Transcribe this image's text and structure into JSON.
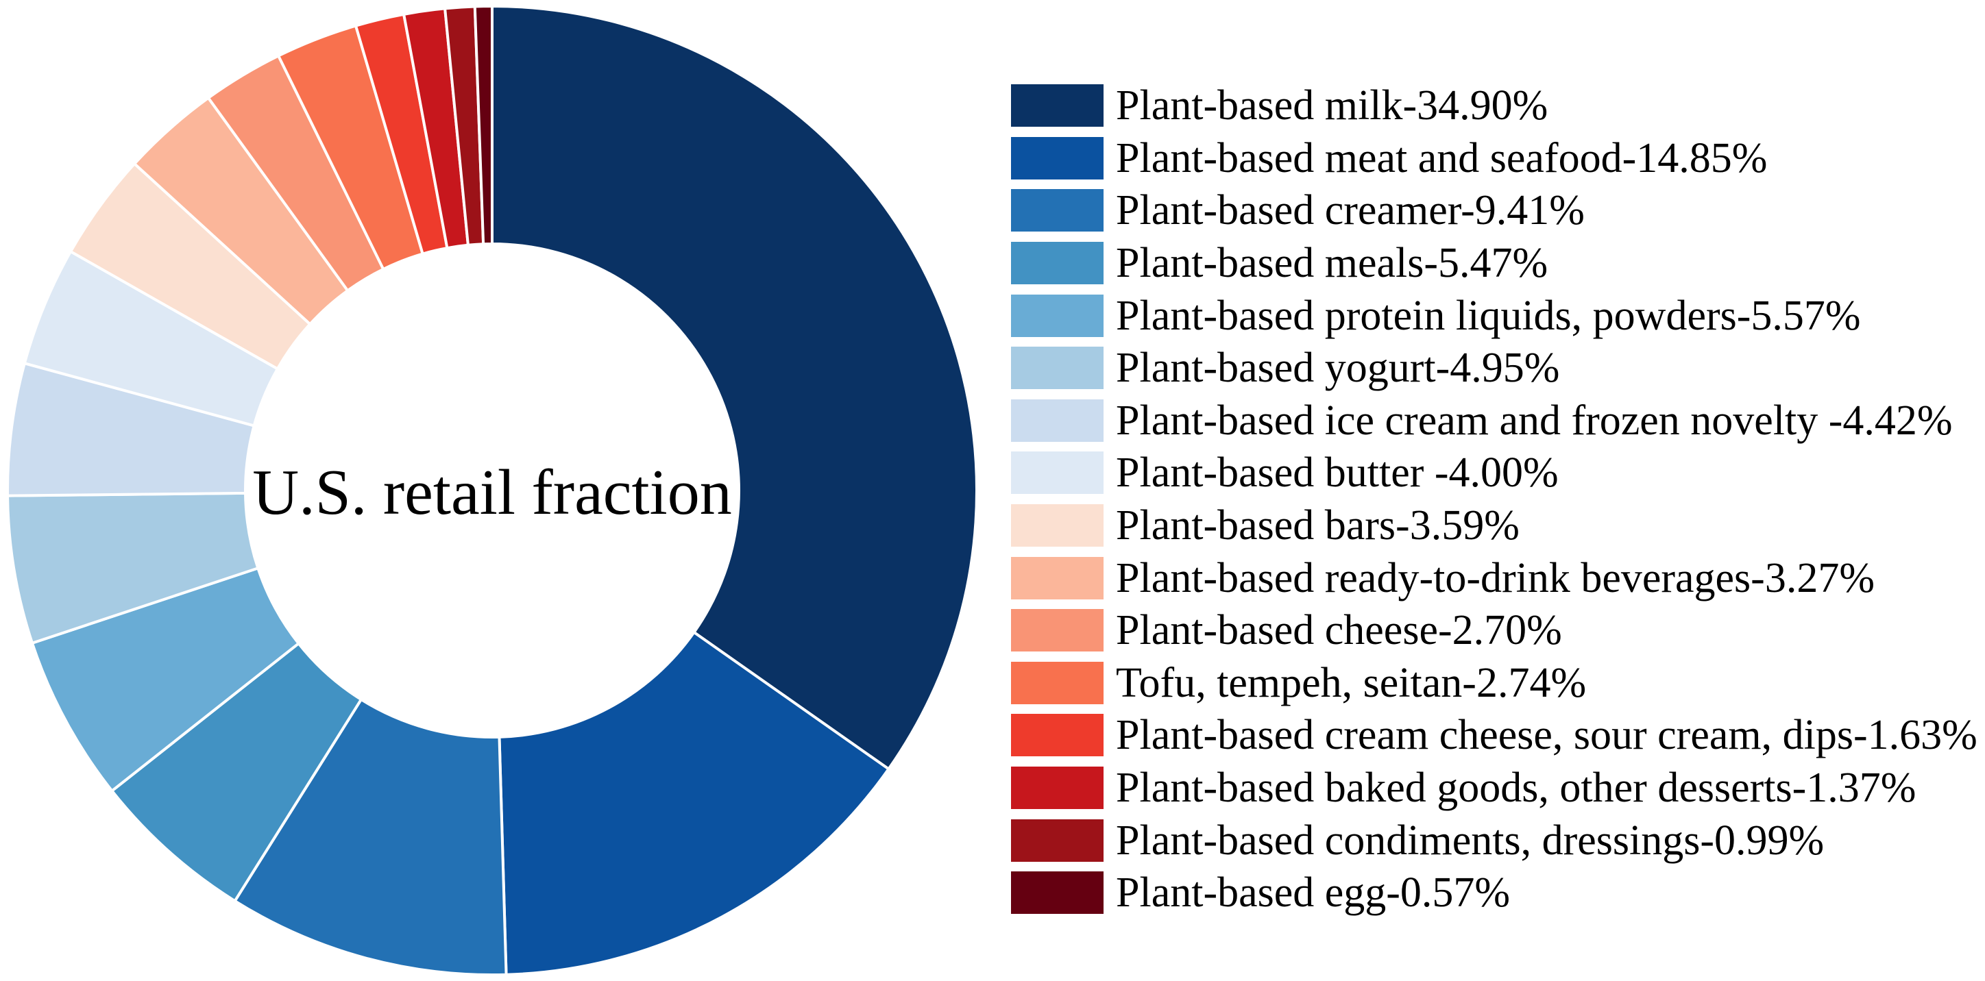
{
  "chart_data": {
    "type": "pie",
    "subtype": "donut",
    "center_label": "U.S. retail fraction",
    "legend_position": "right",
    "start_angle_deg": 90,
    "direction": "clockwise",
    "gap_color": "#ffffff",
    "items": [
      {
        "label": "Plant-based milk",
        "value": 34.9,
        "display": "Plant-based milk-34.90%",
        "color": "#0a3264"
      },
      {
        "label": "Plant-based meat and seafood",
        "value": 14.85,
        "display": "Plant-based meat and seafood-14.85%",
        "color": "#0b52a0"
      },
      {
        "label": "Plant-based creamer",
        "value": 9.41,
        "display": "Plant-based creamer-9.41%",
        "color": "#2371b4"
      },
      {
        "label": "Plant-based meals",
        "value": 5.47,
        "display": "Plant-based meals-5.47%",
        "color": "#4292c3"
      },
      {
        "label": "Plant-based protein liquids, powders",
        "value": 5.57,
        "display": "Plant-based protein liquids, powders-5.57%",
        "color": "#69acd5"
      },
      {
        "label": "Plant-based yogurt",
        "value": 4.95,
        "display": "Plant-based yogurt-4.95%",
        "color": "#a6cbe3"
      },
      {
        "label": "Plant-based ice cream and frozen novelty",
        "value": 4.42,
        "display": "Plant-based ice cream and frozen novelty -4.42%",
        "color": "#cbdcef"
      },
      {
        "label": "Plant-based butter",
        "value": 4.0,
        "display": "Plant-based butter -4.00%",
        "color": "#dee9f5"
      },
      {
        "label": "Plant-based bars",
        "value": 3.59,
        "display": "Plant-based bars-3.59%",
        "color": "#fbe0d1"
      },
      {
        "label": "Plant-based ready-to-drink beverages",
        "value": 3.27,
        "display": "Plant-based ready-to-drink beverages-3.27%",
        "color": "#fbb69a"
      },
      {
        "label": "Plant-based cheese",
        "value": 2.7,
        "display": "Plant-based cheese-2.70%",
        "color": "#f99475"
      },
      {
        "label": "Tofu, tempeh, seitan",
        "value": 2.74,
        "display": "Tofu, tempeh, seitan-2.74%",
        "color": "#f8714e"
      },
      {
        "label": "Plant-based cream cheese, sour cream, dips",
        "value": 1.63,
        "display": "Plant-based cream cheese, sour cream, dips-1.63%",
        "color": "#ee3b2c"
      },
      {
        "label": "Plant-based baked goods, other desserts",
        "value": 1.37,
        "display": "Plant-based baked goods, other desserts-1.37%",
        "color": "#c7171d"
      },
      {
        "label": "Plant-based condiments, dressings",
        "value": 0.99,
        "display": "Plant-based condiments, dressings-0.99%",
        "color": "#9c1218"
      },
      {
        "label": "Plant-based egg",
        "value": 0.57,
        "display": "Plant-based egg-0.57%",
        "color": "#650011"
      }
    ]
  }
}
